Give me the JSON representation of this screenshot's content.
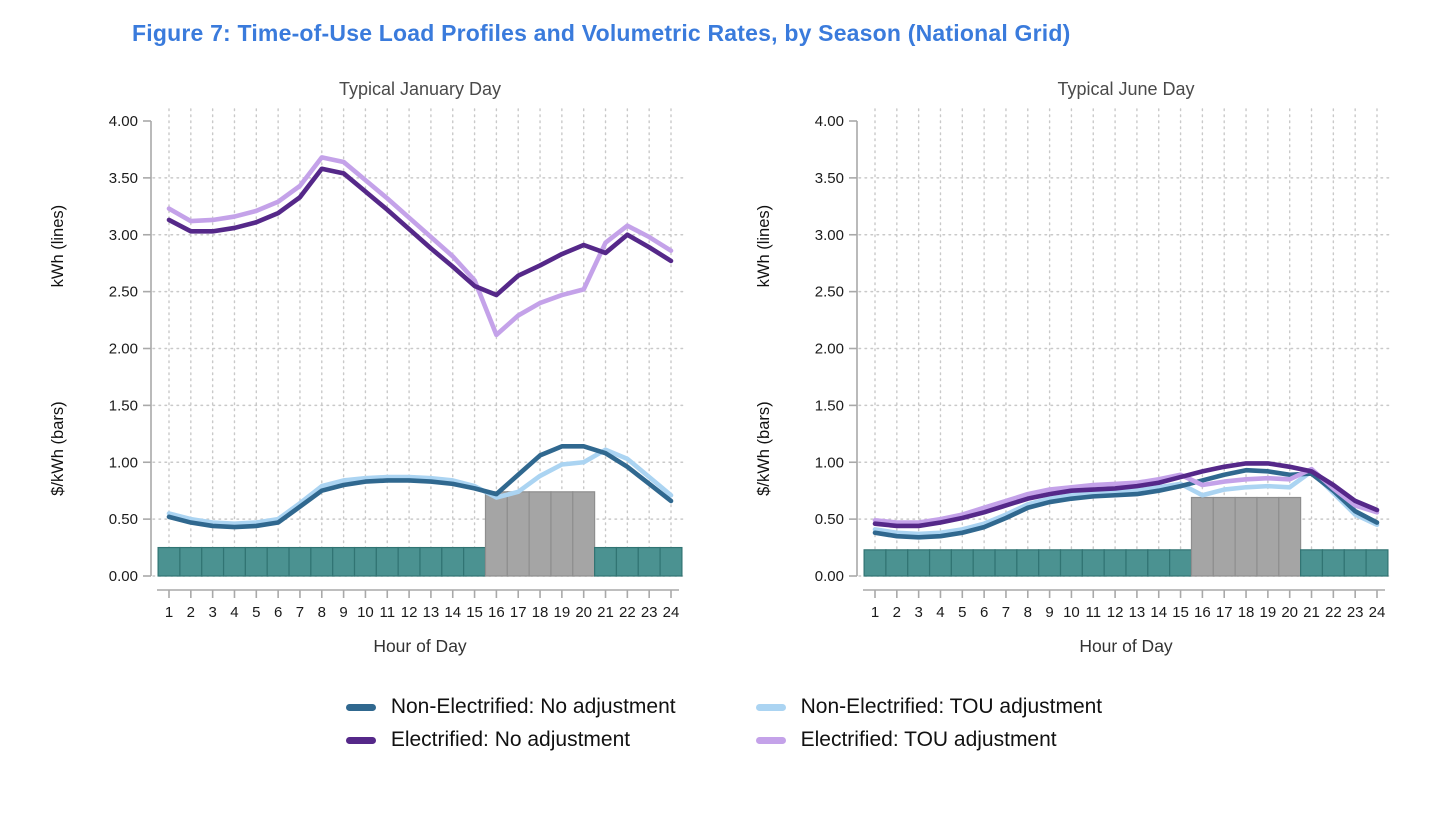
{
  "figure_title": "Figure 7: Time-of-Use Load Profiles and Volumetric Rates, by Season (National Grid)",
  "colors": {
    "title": "#3a7bdc",
    "bar_offpeak": "#4b9291",
    "bar_offpeak_border": "#317473",
    "bar_peak": "#a5a5a5",
    "bar_peak_border": "#8e8e8e",
    "grid": "#c9c9c9",
    "axis": "#a9a9a9"
  },
  "axes": {
    "y_max": 4.0,
    "y_ticks": [
      "4.00",
      "3.50",
      "3.00",
      "2.50",
      "2.00",
      "1.50",
      "1.00",
      "0.50",
      "0.00"
    ],
    "x_ticks": [
      1,
      2,
      3,
      4,
      5,
      6,
      7,
      8,
      9,
      10,
      11,
      12,
      13,
      14,
      15,
      16,
      17,
      18,
      19,
      20,
      21,
      22,
      23,
      24
    ],
    "x_label": "Hour of Day",
    "y_label_lines": "kWh (lines)",
    "y_label_bars": "$/kWh (bars)"
  },
  "legend": [
    {
      "label": "Non-Electrified: No adjustment",
      "color": "#30688f"
    },
    {
      "label": "Non-Electrified: TOU adjustment",
      "color": "#abd4f2"
    },
    {
      "label": "Electrified: No adjustment",
      "color": "#552889"
    },
    {
      "label": "Electrified: TOU adjustment",
      "color": "#c4a2e9"
    }
  ],
  "chart_data": [
    {
      "type": "line+bar",
      "title": "Typical January Day",
      "x": [
        1,
        2,
        3,
        4,
        5,
        6,
        7,
        8,
        9,
        10,
        11,
        12,
        13,
        14,
        15,
        16,
        17,
        18,
        19,
        20,
        21,
        22,
        23,
        24
      ],
      "xlabel": "Hour of Day",
      "ylabel_lines": "kWh (lines)",
      "ylabel_bars": "$/kWh (bars)",
      "ylim": [
        0,
        4.0
      ],
      "draw_order": [
        1,
        0,
        3,
        2
      ],
      "series": [
        {
          "id": "non-electrified-no-adjustment",
          "name": "Non-Electrified: No adjustment",
          "color": "#30688f",
          "values": [
            0.52,
            0.47,
            0.44,
            0.43,
            0.44,
            0.47,
            0.61,
            0.75,
            0.8,
            0.83,
            0.84,
            0.84,
            0.83,
            0.81,
            0.77,
            0.72,
            0.89,
            1.06,
            1.14,
            1.14,
            1.08,
            0.96,
            0.81,
            0.66
          ]
        },
        {
          "id": "non-electrified-tou-adjustment",
          "name": "Non-Electrified: TOU adjustment",
          "color": "#abd4f2",
          "values": [
            0.55,
            0.5,
            0.47,
            0.46,
            0.47,
            0.5,
            0.64,
            0.79,
            0.84,
            0.86,
            0.87,
            0.87,
            0.86,
            0.84,
            0.79,
            0.69,
            0.74,
            0.88,
            0.98,
            1.0,
            1.11,
            1.03,
            0.87,
            0.71
          ]
        },
        {
          "id": "electrified-no-adjustment",
          "name": "Electrified: No adjustment",
          "color": "#552889",
          "values": [
            3.13,
            3.03,
            3.03,
            3.06,
            3.11,
            3.19,
            3.33,
            3.58,
            3.54,
            3.38,
            3.22,
            3.05,
            2.88,
            2.72,
            2.55,
            2.47,
            2.64,
            2.73,
            2.83,
            2.91,
            2.84,
            3.0,
            2.89,
            2.77
          ]
        },
        {
          "id": "electrified-tou-adjustment",
          "name": "Electrified: TOU adjustment",
          "color": "#c4a2e9",
          "values": [
            3.23,
            3.12,
            3.13,
            3.16,
            3.21,
            3.29,
            3.43,
            3.68,
            3.64,
            3.48,
            3.32,
            3.15,
            2.98,
            2.81,
            2.6,
            2.12,
            2.29,
            2.4,
            2.47,
            2.52,
            2.93,
            3.08,
            2.98,
            2.86
          ]
        }
      ],
      "bars": {
        "name": "volumetric-rate",
        "offpeak_value": 0.25,
        "peak_value": 0.74,
        "peak_hours": [
          16,
          20
        ],
        "values": [
          0.25,
          0.25,
          0.25,
          0.25,
          0.25,
          0.25,
          0.25,
          0.25,
          0.25,
          0.25,
          0.25,
          0.25,
          0.25,
          0.25,
          0.25,
          0.74,
          0.74,
          0.74,
          0.74,
          0.74,
          0.25,
          0.25,
          0.25,
          0.25
        ]
      }
    },
    {
      "type": "line+bar",
      "title": "Typical June Day",
      "x": [
        1,
        2,
        3,
        4,
        5,
        6,
        7,
        8,
        9,
        10,
        11,
        12,
        13,
        14,
        15,
        16,
        17,
        18,
        19,
        20,
        21,
        22,
        23,
        24
      ],
      "xlabel": "Hour of Day",
      "ylabel_lines": "kWh (lines)",
      "ylabel_bars": "$/kWh (bars)",
      "ylim": [
        0,
        4.0
      ],
      "draw_order": [
        1,
        0,
        3,
        2
      ],
      "series": [
        {
          "id": "non-electrified-no-adjustment",
          "name": "Non-Electrified: No adjustment",
          "color": "#30688f",
          "values": [
            0.38,
            0.35,
            0.34,
            0.35,
            0.38,
            0.43,
            0.51,
            0.6,
            0.65,
            0.68,
            0.7,
            0.71,
            0.72,
            0.75,
            0.79,
            0.84,
            0.89,
            0.93,
            0.92,
            0.89,
            0.9,
            0.75,
            0.57,
            0.47
          ]
        },
        {
          "id": "non-electrified-tou-adjustment",
          "name": "Non-Electrified: TOU adjustment",
          "color": "#abd4f2",
          "values": [
            0.41,
            0.38,
            0.37,
            0.38,
            0.41,
            0.46,
            0.54,
            0.63,
            0.68,
            0.71,
            0.73,
            0.74,
            0.75,
            0.78,
            0.81,
            0.71,
            0.76,
            0.78,
            0.79,
            0.78,
            0.92,
            0.73,
            0.54,
            0.45
          ]
        },
        {
          "id": "electrified-no-adjustment",
          "name": "Electrified: No adjustment",
          "color": "#552889",
          "values": [
            0.46,
            0.44,
            0.44,
            0.47,
            0.51,
            0.56,
            0.62,
            0.68,
            0.72,
            0.75,
            0.76,
            0.77,
            0.79,
            0.82,
            0.87,
            0.92,
            0.96,
            0.99,
            0.99,
            0.96,
            0.92,
            0.8,
            0.66,
            0.58
          ]
        },
        {
          "id": "electrified-tou-adjustment",
          "name": "Electrified: TOU adjustment",
          "color": "#c4a2e9",
          "values": [
            0.49,
            0.47,
            0.47,
            0.5,
            0.54,
            0.6,
            0.66,
            0.72,
            0.76,
            0.78,
            0.8,
            0.81,
            0.82,
            0.85,
            0.89,
            0.8,
            0.83,
            0.85,
            0.86,
            0.85,
            0.94,
            0.77,
            0.62,
            0.56
          ]
        }
      ],
      "bars": {
        "name": "volumetric-rate",
        "offpeak_value": 0.23,
        "peak_value": 0.69,
        "peak_hours": [
          16,
          20
        ],
        "values": [
          0.23,
          0.23,
          0.23,
          0.23,
          0.23,
          0.23,
          0.23,
          0.23,
          0.23,
          0.23,
          0.23,
          0.23,
          0.23,
          0.23,
          0.23,
          0.69,
          0.69,
          0.69,
          0.69,
          0.69,
          0.23,
          0.23,
          0.23,
          0.23
        ]
      }
    }
  ]
}
